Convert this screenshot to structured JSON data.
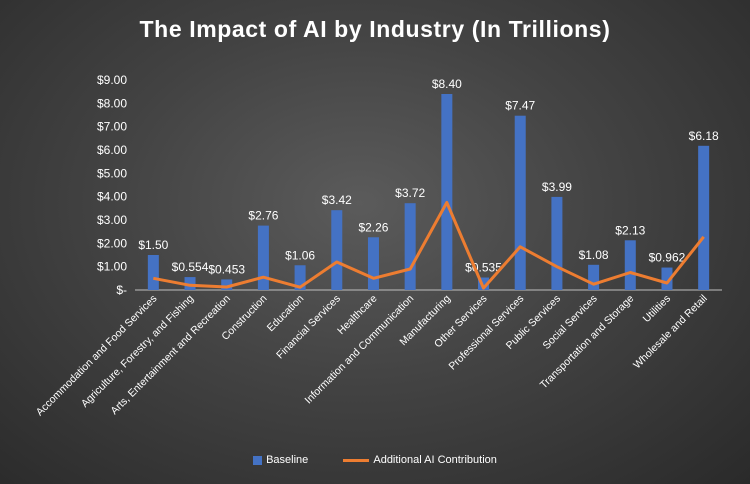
{
  "chart_data": {
    "type": "bar",
    "title": "The Impact of AI by Industry (In Trillions)",
    "xlabel": "",
    "ylabel": "",
    "ylim": [
      0,
      9
    ],
    "yticks": [
      "$-",
      "$1.00",
      "$2.00",
      "$3.00",
      "$4.00",
      "$5.00",
      "$6.00",
      "$7.00",
      "$8.00",
      "$9.00"
    ],
    "grid": false,
    "legend_position": "bottom",
    "categories": [
      "Accommodation and Food Services",
      "Agriculture, Forestry, and Fishing",
      "Arts, Entertainment and Recreation",
      "Construction",
      "Education",
      "Financial Services",
      "Healthcare",
      "Information and Communication",
      "Manufacturing",
      "Other Services",
      "Professional Services",
      "Public Services",
      "Social Services",
      "Transportation and Storage",
      "Utilities",
      "Wholesale and Retail"
    ],
    "series": [
      {
        "name": "Baseline",
        "type": "bar",
        "color": "#4472c4",
        "values": [
          1.5,
          0.554,
          0.453,
          2.76,
          1.06,
          3.42,
          2.26,
          3.72,
          8.4,
          0.535,
          7.47,
          3.99,
          1.08,
          2.13,
          0.962,
          6.18
        ],
        "labels": [
          "$1.50",
          "$0.554",
          "$0.453",
          "$2.76",
          "$1.06",
          "$3.42",
          "$2.26",
          "$3.72",
          "$8.40",
          "$0.535",
          "$7.47",
          "$3.99",
          "$1.08",
          "$2.13",
          "$0.962",
          "$6.18"
        ]
      },
      {
        "name": "Additional AI Contribution",
        "type": "line",
        "color": "#ed7d31",
        "values": [
          0.5,
          0.2,
          0.13,
          0.55,
          0.12,
          1.2,
          0.5,
          0.9,
          3.75,
          0.08,
          1.85,
          1.0,
          0.25,
          0.75,
          0.3,
          2.28
        ]
      }
    ]
  }
}
